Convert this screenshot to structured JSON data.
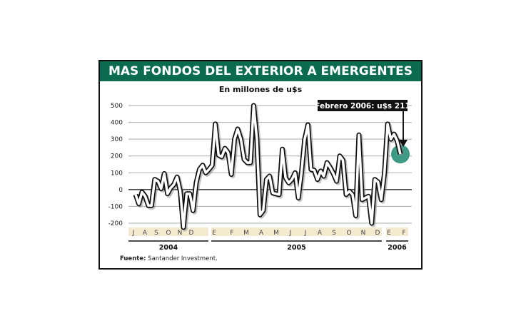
{
  "header": {
    "title": "MAS FONDOS DEL EXTERIOR A EMERGENTES",
    "subtitle": "En millones de u$s"
  },
  "source": {
    "label": "Fuente:",
    "text": " Santander Investment."
  },
  "chart_data": {
    "type": "line",
    "title": "MAS FONDOS DEL EXTERIOR A EMERGENTES",
    "ylabel": "En millones de u$s",
    "ylim": [
      -200,
      500
    ],
    "yticks": [
      500,
      400,
      300,
      200,
      100,
      0,
      -100,
      -200
    ],
    "grid": true,
    "months": [
      {
        "label": "J",
        "year": "2004"
      },
      {
        "label": "A",
        "year": "2004"
      },
      {
        "label": "S",
        "year": "2004"
      },
      {
        "label": "O",
        "year": "2004"
      },
      {
        "label": "N",
        "year": "2004"
      },
      {
        "label": "D",
        "year": "2004"
      },
      {
        "label": "E",
        "year": "2005"
      },
      {
        "label": "F",
        "year": "2005"
      },
      {
        "label": "M",
        "year": "2005"
      },
      {
        "label": "A",
        "year": "2005"
      },
      {
        "label": "M",
        "year": "2005"
      },
      {
        "label": "J",
        "year": "2005"
      },
      {
        "label": "J",
        "year": "2005"
      },
      {
        "label": "A",
        "year": "2005"
      },
      {
        "label": "S",
        "year": "2005"
      },
      {
        "label": "O",
        "year": "2005"
      },
      {
        "label": "N",
        "year": "2005"
      },
      {
        "label": "D",
        "year": "2005"
      },
      {
        "label": "E",
        "year": "2006"
      },
      {
        "label": "F",
        "year": "2006"
      }
    ],
    "years": [
      "2004",
      "2005",
      "2006"
    ],
    "values": [
      -30,
      -85,
      -15,
      -40,
      -95,
      -95,
      60,
      50,
      5,
      95,
      -25,
      10,
      30,
      75,
      -10,
      -225,
      -25,
      -25,
      -125,
      40,
      120,
      145,
      100,
      120,
      145,
      390,
      205,
      195,
      245,
      220,
      90,
      300,
      360,
      300,
      180,
      160,
      160,
      500,
      300,
      -150,
      -125,
      60,
      80,
      -20,
      -25,
      -30,
      240,
      70,
      40,
      60,
      100,
      -50,
      100,
      300,
      385,
      120,
      115,
      60,
      110,
      80,
      160,
      130,
      95,
      50,
      200,
      175,
      -30,
      -10,
      -30,
      -155,
      325,
      -60,
      -50,
      -40,
      -200,
      60,
      45,
      -60,
      100,
      390,
      300,
      330,
      290,
      211
    ],
    "annotation": {
      "text": "Febrero 2006: u$s 211",
      "value": 211
    },
    "colors": {
      "header": "#0b6b50",
      "highlight": "#3e9a84",
      "band": "#f3ead0"
    }
  }
}
